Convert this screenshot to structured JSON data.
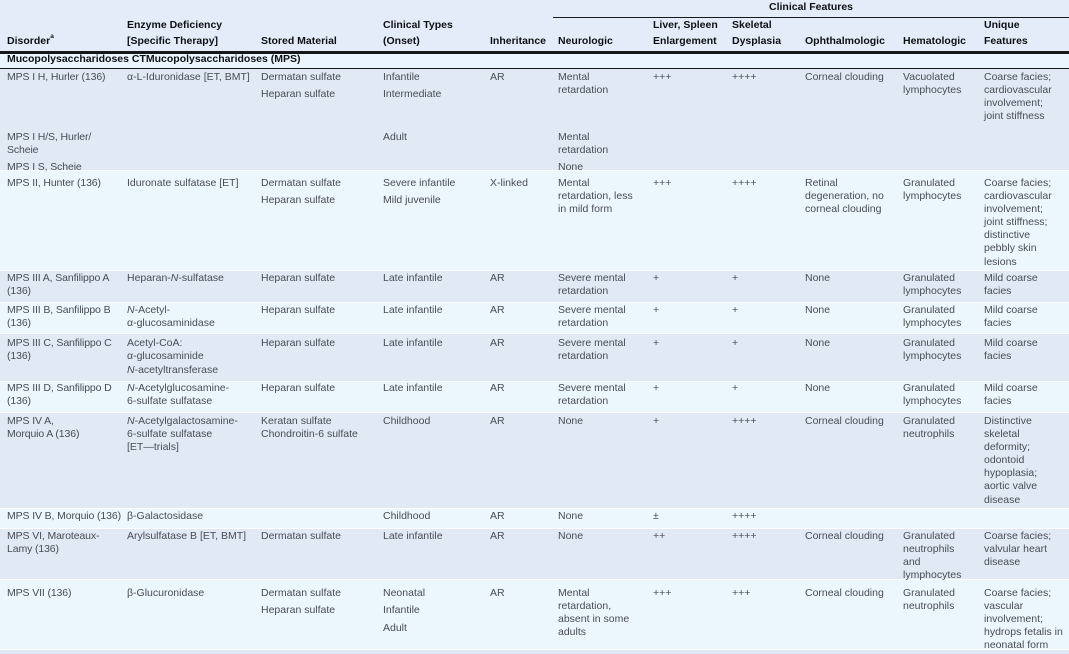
{
  "document": {
    "kind": "medical reference table",
    "group_header": "Clinical Features",
    "section_header": "Mucopolysaccharidoses CTMucopolysaccharidoses (MPS)",
    "disorder_superscript": "a"
  },
  "colors": {
    "header_bg": "#e3ecf8",
    "row_a_bg": "#e1e9f5",
    "row_b_bg": "#ecf6fd",
    "section_bg": "#eaf5fd",
    "rule_dark": "#17181a",
    "text_body": "#494d52",
    "text_header": "#0e1013"
  },
  "columns": [
    {
      "id": "disorder",
      "lines": [
        "Disorder"
      ],
      "sup": "a"
    },
    {
      "id": "enzyme",
      "lines": [
        "Enzyme Deficiency",
        "[Specific Therapy]"
      ]
    },
    {
      "id": "stored",
      "lines": [
        "Stored Material"
      ]
    },
    {
      "id": "types",
      "lines": [
        "Clinical Types",
        "(Onset)"
      ]
    },
    {
      "id": "inheritance",
      "lines": [
        "Inheritance"
      ]
    },
    {
      "id": "neurologic",
      "lines": [
        "Neurologic"
      ]
    },
    {
      "id": "liver",
      "lines": [
        "Liver, Spleen",
        "Enlargement"
      ]
    },
    {
      "id": "skeletal",
      "lines": [
        "Skeletal",
        "Dysplasia"
      ]
    },
    {
      "id": "ophthalmologic",
      "lines": [
        "Ophthalmologic"
      ]
    },
    {
      "id": "hematologic",
      "lines": [
        "Hematologic"
      ]
    },
    {
      "id": "unique",
      "lines": [
        "Unique",
        "Features"
      ]
    }
  ],
  "rows": [
    {
      "id": "mps-i-h",
      "cells": {
        "disorder": [
          [
            "MPS I H, Hurler (136)"
          ]
        ],
        "enzyme": [
          [
            "α-L-Iduronidase [ET, BMT]"
          ]
        ],
        "stored": [
          [
            "Dermatan sulfate"
          ],
          [
            "Heparan sulfate"
          ]
        ],
        "types": [
          [
            "Infantile"
          ],
          [
            "Intermediate"
          ]
        ],
        "inheritance": [
          [
            "AR"
          ]
        ],
        "neurologic": [
          [
            "Mental",
            "retardation"
          ]
        ],
        "liver": [
          [
            "+++"
          ]
        ],
        "skeletal": [
          [
            "++++"
          ]
        ],
        "ophthalmologic": [
          [
            "Corneal clouding"
          ]
        ],
        "hematologic": [
          [
            "Vacuolated",
            "lymphocytes"
          ]
        ],
        "unique": [
          [
            "Coarse facies;",
            "cardiovascular",
            "involvement;",
            "joint stiffness"
          ]
        ]
      }
    },
    {
      "id": "mps-i-hs",
      "cells": {
        "disorder": [
          [
            "MPS I H/S, Hurler/",
            "Scheie"
          ]
        ],
        "types": [
          [
            "Adult"
          ]
        ],
        "neurologic": [
          [
            "Mental",
            "retardation"
          ]
        ]
      }
    },
    {
      "id": "mps-i-s",
      "cells": {
        "disorder": [
          [
            "MPS I S, Scheie"
          ]
        ],
        "neurologic": [
          [
            "None"
          ]
        ]
      }
    },
    {
      "id": "mps-ii",
      "cells": {
        "disorder": [
          [
            "MPS II, Hunter (136)"
          ]
        ],
        "enzyme": [
          [
            "Iduronate sulfatase [ET]"
          ]
        ],
        "stored": [
          [
            "Dermatan sulfate"
          ],
          [
            "Heparan sulfate"
          ]
        ],
        "types": [
          [
            "Severe infantile"
          ],
          [
            "Mild juvenile"
          ]
        ],
        "inheritance": [
          [
            "X-linked"
          ]
        ],
        "neurologic": [
          [
            "Mental",
            "retardation, less",
            "in mild form"
          ]
        ],
        "liver": [
          [
            "+++"
          ]
        ],
        "skeletal": [
          [
            "++++"
          ]
        ],
        "ophthalmologic": [
          [
            "Retinal",
            "degeneration, no",
            "corneal clouding"
          ]
        ],
        "hematologic": [
          [
            "Granulated",
            "lymphocytes"
          ]
        ],
        "unique": [
          [
            "Coarse facies;",
            "cardiovascular",
            "involvement;",
            "joint stiffness;",
            "distinctive",
            "pebbly skin",
            "lesions"
          ]
        ]
      }
    },
    {
      "id": "mps-iii-a",
      "cells": {
        "disorder": [
          [
            "MPS III A, Sanfilippo A",
            "(136)"
          ]
        ],
        "enzyme": [
          [
            "Heparan-N-sulfatase"
          ]
        ],
        "stored": [
          [
            "Heparan sulfate"
          ]
        ],
        "types": [
          [
            "Late infantile"
          ]
        ],
        "inheritance": [
          [
            "AR"
          ]
        ],
        "neurologic": [
          [
            "Severe mental",
            "retardation"
          ]
        ],
        "liver": [
          [
            "+"
          ]
        ],
        "skeletal": [
          [
            "+"
          ]
        ],
        "ophthalmologic": [
          [
            "None"
          ]
        ],
        "hematologic": [
          [
            "Granulated",
            "lymphocytes"
          ]
        ],
        "unique": [
          [
            "Mild coarse",
            "facies"
          ]
        ]
      }
    },
    {
      "id": "mps-iii-b",
      "cells": {
        "disorder": [
          [
            "MPS III B, Sanfilippo B",
            "(136)"
          ]
        ],
        "enzyme": [
          [
            "N-Acetyl-",
            "α-glucosaminidase"
          ]
        ],
        "stored": [
          [
            "Heparan sulfate"
          ]
        ],
        "types": [
          [
            "Late infantile"
          ]
        ],
        "inheritance": [
          [
            "AR"
          ]
        ],
        "neurologic": [
          [
            "Severe mental",
            "retardation"
          ]
        ],
        "liver": [
          [
            "+"
          ]
        ],
        "skeletal": [
          [
            "+"
          ]
        ],
        "ophthalmologic": [
          [
            "None"
          ]
        ],
        "hematologic": [
          [
            "Granulated",
            "lymphocytes"
          ]
        ],
        "unique": [
          [
            "Mild coarse",
            "facies"
          ]
        ]
      }
    },
    {
      "id": "mps-iii-c",
      "cells": {
        "disorder": [
          [
            "MPS III C, Sanfilippo C",
            "(136)"
          ]
        ],
        "enzyme": [
          [
            "Acetyl-CoA:",
            "α-glucosaminide",
            "N-acetyltransferase"
          ]
        ],
        "stored": [
          [
            "Heparan sulfate"
          ]
        ],
        "types": [
          [
            "Late infantile"
          ]
        ],
        "inheritance": [
          [
            "AR"
          ]
        ],
        "neurologic": [
          [
            "Severe mental",
            "retardation"
          ]
        ],
        "liver": [
          [
            "+"
          ]
        ],
        "skeletal": [
          [
            "+"
          ]
        ],
        "ophthalmologic": [
          [
            "None"
          ]
        ],
        "hematologic": [
          [
            "Granulated",
            "lymphocytes"
          ]
        ],
        "unique": [
          [
            "Mild coarse",
            "facies"
          ]
        ]
      }
    },
    {
      "id": "mps-iii-d",
      "cells": {
        "disorder": [
          [
            "MPS III D, Sanfilippo D",
            "(136)"
          ]
        ],
        "enzyme": [
          [
            "N-Acetylglucosamine-",
            "6-sulfate sulfatase"
          ]
        ],
        "stored": [
          [
            "Heparan sulfate"
          ]
        ],
        "types": [
          [
            "Late infantile"
          ]
        ],
        "inheritance": [
          [
            "AR"
          ]
        ],
        "neurologic": [
          [
            "Severe mental",
            "retardation"
          ]
        ],
        "liver": [
          [
            "+"
          ]
        ],
        "skeletal": [
          [
            "+"
          ]
        ],
        "ophthalmologic": [
          [
            "None"
          ]
        ],
        "hematologic": [
          [
            "Granulated",
            "lymphocytes"
          ]
        ],
        "unique": [
          [
            "Mild coarse",
            "facies"
          ]
        ]
      }
    },
    {
      "id": "mps-iv-a",
      "cells": {
        "disorder": [
          [
            "MPS IV A,",
            "Morquio A (136)"
          ]
        ],
        "enzyme": [
          [
            "N-Acetylgalactosamine-",
            "6-sulfate sulfatase",
            "[ET—trials]"
          ]
        ],
        "stored": [
          [
            "Keratan sulfate",
            "Chondroitin-6 sulfate"
          ]
        ],
        "types": [
          [
            "Childhood"
          ]
        ],
        "inheritance": [
          [
            "AR"
          ]
        ],
        "neurologic": [
          [
            "None"
          ]
        ],
        "liver": [
          [
            "+"
          ]
        ],
        "skeletal": [
          [
            "++++"
          ]
        ],
        "ophthalmologic": [
          [
            "Corneal clouding"
          ]
        ],
        "hematologic": [
          [
            "Granulated",
            "neutrophils"
          ]
        ],
        "unique": [
          [
            "Distinctive",
            "skeletal",
            "deformity;",
            "odontoid",
            "hypoplasia;",
            "aortic valve",
            "disease"
          ]
        ]
      }
    },
    {
      "id": "mps-iv-b",
      "cells": {
        "disorder": [
          [
            "MPS IV B, Morquio (136)"
          ]
        ],
        "enzyme": [
          [
            "β-Galactosidase"
          ]
        ],
        "types": [
          [
            "Childhood"
          ]
        ],
        "inheritance": [
          [
            "AR"
          ]
        ],
        "neurologic": [
          [
            "None"
          ]
        ],
        "liver": [
          [
            "±"
          ]
        ],
        "skeletal": [
          [
            "++++"
          ]
        ]
      }
    },
    {
      "id": "mps-vi",
      "cells": {
        "disorder": [
          [
            "MPS VI, Maroteaux-",
            "Lamy (136)"
          ]
        ],
        "enzyme": [
          [
            "Arylsulfatase B [ET, BMT]"
          ]
        ],
        "stored": [
          [
            "Dermatan sulfate"
          ]
        ],
        "types": [
          [
            "Late infantile"
          ]
        ],
        "inheritance": [
          [
            "AR"
          ]
        ],
        "neurologic": [
          [
            "None"
          ]
        ],
        "liver": [
          [
            "++"
          ]
        ],
        "skeletal": [
          [
            "++++"
          ]
        ],
        "ophthalmologic": [
          [
            "Corneal clouding"
          ]
        ],
        "hematologic": [
          [
            "Granulated",
            "neutrophils",
            "and",
            "lymphocytes"
          ]
        ],
        "unique": [
          [
            "Coarse facies;",
            "valvular heart",
            "disease"
          ]
        ]
      }
    },
    {
      "id": "mps-vii",
      "cells": {
        "disorder": [
          [
            "MPS VII (136)"
          ]
        ],
        "enzyme": [
          [
            "β-Glucuronidase"
          ]
        ],
        "stored": [
          [
            "Dermatan sulfate"
          ],
          [
            "Heparan sulfate"
          ]
        ],
        "types": [
          [
            "Neonatal"
          ],
          [
            "Infantile"
          ],
          [
            "Adult"
          ]
        ],
        "inheritance": [
          [
            "AR"
          ]
        ],
        "neurologic": [
          [
            "Mental",
            "retardation,",
            "absent in some",
            "adults"
          ]
        ],
        "liver": [
          [
            "+++"
          ]
        ],
        "skeletal": [
          [
            "+++"
          ]
        ],
        "ophthalmologic": [
          [
            "Corneal clouding"
          ]
        ],
        "hematologic": [
          [
            "Granulated",
            "neutrophils"
          ]
        ],
        "unique": [
          [
            "Coarse facies;",
            "vascular",
            "involvement;",
            "hydrops fetalis in",
            "neonatal form"
          ]
        ]
      }
    }
  ]
}
